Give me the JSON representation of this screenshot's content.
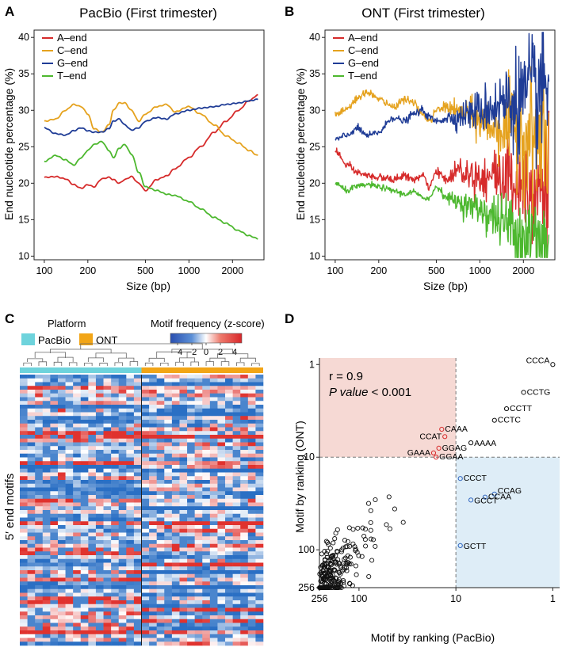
{
  "panels": {
    "A": {
      "letter": "A"
    },
    "B": {
      "letter": "B"
    },
    "C": {
      "letter": "C"
    },
    "D": {
      "letter": "D"
    }
  },
  "colors": {
    "A_end": "#d62b2b",
    "C_end": "#e5a21e",
    "G_end": "#1f3c96",
    "T_end": "#4db82f",
    "PacBio": "#6ed3dc",
    "ONT": "#f2a516",
    "heat_low": "#2a6fc4",
    "heat_high": "#e0322e",
    "quad_tl": "#f6d9d4",
    "quad_br": "#deedf7",
    "d_red": "#d62b2b",
    "d_blue": "#2f66c0"
  },
  "chart_data": [
    {
      "type": "line",
      "panel": "A",
      "title": "PacBio (First trimester)",
      "xlabel": "Size (bp)",
      "ylabel": "End nucleotide percentage (%)",
      "xscale": "log",
      "xlim": [
        85,
        3300
      ],
      "ylim": [
        9.5,
        41
      ],
      "xticks": [
        100,
        200,
        500,
        1000,
        2000
      ],
      "yticks": [
        10,
        15,
        20,
        25,
        30,
        35,
        40
      ],
      "legend": "top-left",
      "series": [
        {
          "name": "A–end",
          "color": "#d62b2b",
          "x": [
            100,
            120,
            140,
            160,
            180,
            200,
            220,
            250,
            280,
            300,
            330,
            360,
            400,
            450,
            500,
            600,
            700,
            800,
            1000,
            1200,
            1500,
            1800,
            2200,
            2600,
            3000
          ],
          "y": [
            20.8,
            20.9,
            20.6,
            19.8,
            19.3,
            19.8,
            19.5,
            20.6,
            20.8,
            20.5,
            20.0,
            20.5,
            20.9,
            20.0,
            19.0,
            20.5,
            21.0,
            22.0,
            23.5,
            25.0,
            27.0,
            28.5,
            30.0,
            31.3,
            32.1
          ]
        },
        {
          "name": "C–end",
          "color": "#e5a21e",
          "x": [
            100,
            120,
            140,
            160,
            180,
            200,
            220,
            250,
            280,
            300,
            330,
            360,
            400,
            450,
            500,
            600,
            700,
            800,
            1000,
            1200,
            1500,
            1800,
            2200,
            2600,
            3000
          ],
          "y": [
            28.5,
            28.8,
            30.0,
            30.8,
            30.5,
            29.5,
            27.5,
            27.0,
            28.0,
            30.0,
            31.0,
            31.0,
            30.0,
            28.5,
            29.5,
            30.5,
            30.8,
            29.8,
            30.5,
            29.5,
            28.0,
            26.5,
            25.5,
            24.5,
            23.8
          ]
        },
        {
          "name": "G–end",
          "color": "#1f3c96",
          "x": [
            100,
            120,
            140,
            160,
            180,
            200,
            220,
            250,
            280,
            300,
            330,
            360,
            400,
            450,
            500,
            600,
            700,
            800,
            1000,
            1200,
            1500,
            1800,
            2200,
            2600,
            3000
          ],
          "y": [
            27.6,
            26.8,
            26.6,
            27.2,
            27.6,
            27.2,
            27.0,
            27.0,
            27.5,
            28.5,
            28.8,
            28.0,
            27.3,
            27.6,
            28.5,
            29.0,
            28.8,
            29.5,
            30.0,
            30.3,
            30.5,
            30.8,
            31.0,
            31.3,
            31.5
          ]
        },
        {
          "name": "T–end",
          "color": "#4db82f",
          "x": [
            100,
            120,
            140,
            160,
            180,
            200,
            220,
            250,
            280,
            300,
            330,
            360,
            400,
            450,
            500,
            600,
            700,
            800,
            1000,
            1200,
            1500,
            1800,
            2200,
            2600,
            3000
          ],
          "y": [
            23.0,
            23.8,
            23.2,
            22.5,
            23.5,
            24.5,
            25.3,
            25.7,
            24.5,
            23.5,
            24.8,
            25.3,
            24.0,
            21.5,
            19.5,
            19.0,
            18.5,
            18.3,
            17.5,
            16.5,
            15.3,
            14.5,
            13.5,
            12.8,
            12.4
          ]
        }
      ]
    },
    {
      "type": "line",
      "panel": "B",
      "title": "ONT (First trimester)",
      "xlabel": "Size (bp)",
      "ylabel": "End nucleotide percentage (%)",
      "xscale": "log",
      "xlim": [
        85,
        3300
      ],
      "ylim": [
        9.5,
        41
      ],
      "xticks": [
        100,
        200,
        500,
        1000,
        2000
      ],
      "yticks": [
        10,
        15,
        20,
        25,
        30,
        35,
        40
      ],
      "legend": "top-left",
      "series": [
        {
          "name": "A–end",
          "color": "#d62b2b",
          "x": [
            100,
            120,
            140,
            170,
            200,
            250,
            300,
            350,
            400,
            450,
            500,
            600,
            700,
            800,
            1000,
            1200,
            1500,
            1800,
            2200,
            2600,
            3000
          ],
          "y": [
            24.5,
            22.5,
            21.5,
            21.0,
            20.8,
            20.5,
            21.0,
            20.5,
            21.0,
            19.5,
            21.5,
            20.5,
            22.0,
            21.5,
            21.0,
            21.0,
            20.8,
            20.5,
            20.0,
            19.8,
            19.5
          ]
        },
        {
          "name": "C–end",
          "color": "#e5a21e",
          "x": [
            100,
            120,
            140,
            170,
            200,
            250,
            300,
            350,
            400,
            450,
            500,
            600,
            700,
            800,
            1000,
            1200,
            1500,
            1800,
            2200,
            2600,
            3000
          ],
          "y": [
            29.5,
            30.0,
            31.5,
            32.5,
            31.5,
            30.5,
            31.5,
            31.0,
            29.5,
            28.5,
            30.0,
            30.5,
            29.8,
            29.5,
            28.5,
            28.0,
            27.5,
            27.0,
            26.5,
            25.8,
            25.5
          ]
        },
        {
          "name": "G–end",
          "color": "#1f3c96",
          "x": [
            100,
            120,
            140,
            170,
            200,
            250,
            300,
            350,
            400,
            450,
            500,
            600,
            700,
            800,
            1000,
            1200,
            1500,
            1800,
            2200,
            2600,
            3000
          ],
          "y": [
            26.0,
            26.5,
            27.5,
            26.5,
            27.0,
            29.0,
            28.5,
            29.5,
            30.0,
            29.0,
            28.5,
            29.0,
            29.0,
            29.5,
            30.0,
            30.5,
            31.0,
            31.5,
            32.0,
            32.5,
            33.0
          ]
        },
        {
          "name": "T–end",
          "color": "#4db82f",
          "x": [
            100,
            120,
            140,
            170,
            200,
            250,
            300,
            350,
            400,
            450,
            500,
            600,
            700,
            800,
            1000,
            1200,
            1500,
            1800,
            2200,
            2600,
            3000
          ],
          "y": [
            20.0,
            19.0,
            19.5,
            19.8,
            19.5,
            19.0,
            18.5,
            18.8,
            18.0,
            18.0,
            19.5,
            18.0,
            17.5,
            17.0,
            16.5,
            15.5,
            14.5,
            13.5,
            12.8,
            12.0,
            11.5
          ]
        }
      ]
    },
    {
      "type": "heatmap",
      "panel": "C",
      "legend_title": "Platform",
      "legend_items": [
        "PacBio",
        "ONT"
      ],
      "colorbar_title": "Motif frequency (z-score)",
      "colorbar_ticks": [
        "−4",
        "−2",
        "0",
        "2",
        "4"
      ],
      "colorbar_range": [
        -5,
        5
      ],
      "ylabel": "5′ end motifs",
      "columns": {
        "PacBio": 16,
        "ONT": 16
      },
      "rows": 72
    },
    {
      "type": "scatter",
      "panel": "D",
      "xlabel": "Motif by ranking (PacBio)",
      "ylabel": "Motif by ranking (ONT)",
      "xscale": "log-reversed",
      "yscale": "log-reversed",
      "xlim": [
        256,
        0.85
      ],
      "ylim": [
        256,
        0.85
      ],
      "xticks": [
        256,
        100,
        10,
        1
      ],
      "yticks": [
        1,
        10,
        100,
        256
      ],
      "threshold": 10,
      "stat_r": "r = 0.9",
      "stat_p_label": "P value",
      "stat_p_value": "< 0.001",
      "labeled_points": [
        {
          "label": "CCCA",
          "x": 1,
          "y": 1,
          "color": "#111111"
        },
        {
          "label": "CCTG",
          "x": 2,
          "y": 2,
          "color": "#111111"
        },
        {
          "label": "CCTT",
          "x": 3,
          "y": 3,
          "color": "#111111"
        },
        {
          "label": "CCTC",
          "x": 4,
          "y": 4,
          "color": "#111111"
        },
        {
          "label": "AAAA",
          "x": 7,
          "y": 7,
          "color": "#111111"
        },
        {
          "label": "CAAA",
          "x": 14,
          "y": 5,
          "color": "#d62b2b"
        },
        {
          "label": "CCAT",
          "x": 13,
          "y": 6,
          "color": "#d62b2b"
        },
        {
          "label": "GGAG",
          "x": 15,
          "y": 8,
          "color": "#d62b2b"
        },
        {
          "label": "GAAA",
          "x": 17,
          "y": 9,
          "color": "#d62b2b"
        },
        {
          "label": "GGAA",
          "x": 16,
          "y": 10,
          "color": "#d62b2b"
        },
        {
          "label": "CCCT",
          "x": 9,
          "y": 17,
          "color": "#2f66c0"
        },
        {
          "label": "CCAG",
          "x": 4,
          "y": 25,
          "color": "#2f66c0"
        },
        {
          "label": "CCAA",
          "x": 5,
          "y": 27,
          "color": "#2f66c0"
        },
        {
          "label": "GCCT",
          "x": 7,
          "y": 29,
          "color": "#2f66c0"
        },
        {
          "label": "GCTT",
          "x": 9,
          "y": 90,
          "color": "#2f66c0"
        }
      ]
    }
  ]
}
